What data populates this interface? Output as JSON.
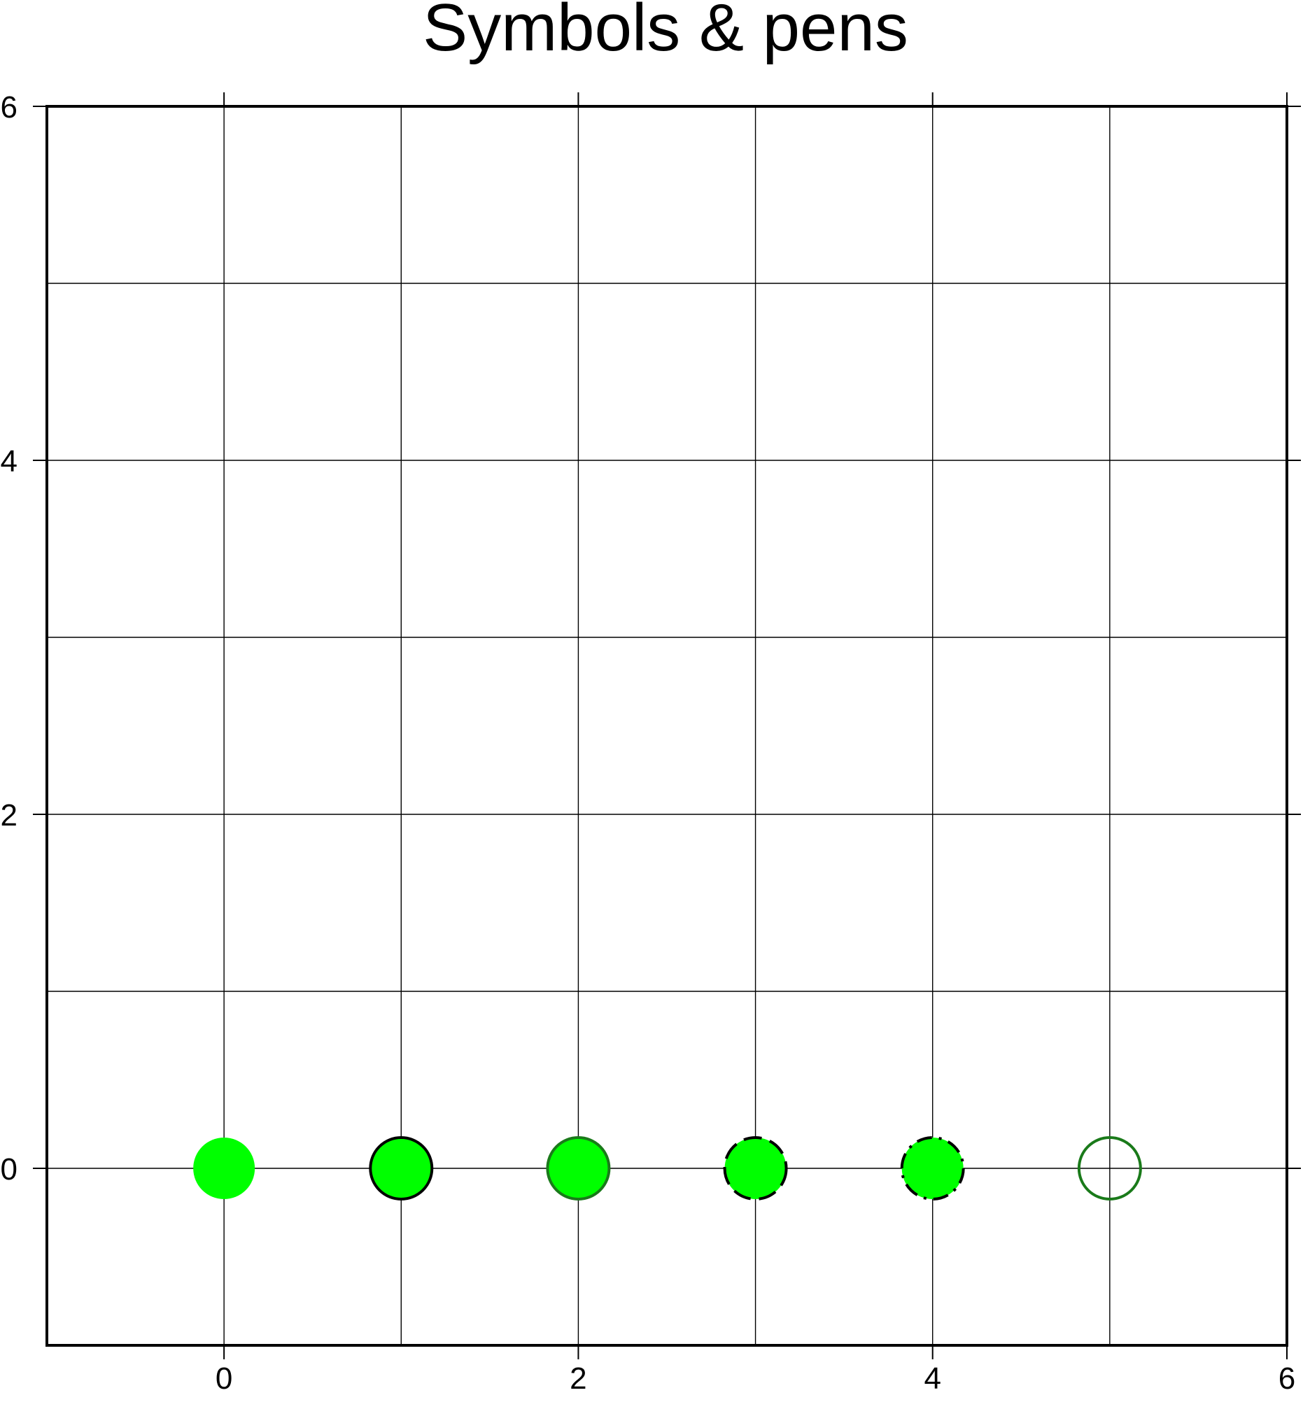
{
  "chart_data": {
    "type": "scatter",
    "title": "Symbols & pens",
    "xlabel": "",
    "ylabel": "",
    "xlim": [
      -1,
      6
    ],
    "ylim": [
      -1,
      6
    ],
    "grid": true,
    "x_ticks": [
      0,
      2,
      4,
      6
    ],
    "x_tick_labels": [
      "0",
      "2",
      "4",
      "6"
    ],
    "y_ticks": [
      0,
      2,
      4,
      6
    ],
    "y_tick_labels": [
      "0",
      "2",
      "4",
      "6"
    ],
    "x_gridlines": [
      0,
      1,
      2,
      3,
      4,
      5
    ],
    "y_gridlines": [
      0,
      1,
      2,
      3,
      4,
      5
    ],
    "points": [
      {
        "x": 0,
        "y": 0,
        "fill": "#00ff00",
        "pen": "none",
        "pen_color": null
      },
      {
        "x": 1,
        "y": 0,
        "fill": "#00ff00",
        "pen": "solid",
        "pen_color": "#000000"
      },
      {
        "x": 2,
        "y": 0,
        "fill": "#00ff00",
        "pen": "solid",
        "pen_color": "#1a7a1a"
      },
      {
        "x": 3,
        "y": 0,
        "fill": "#00ff00",
        "pen": "dashed",
        "pen_color": "#000000"
      },
      {
        "x": 4,
        "y": 0,
        "fill": "#00ff00",
        "pen": "dashdot",
        "pen_color": "#000000"
      },
      {
        "x": 5,
        "y": 0,
        "fill": "none",
        "pen": "solid",
        "pen_color": "#1a7a1a"
      }
    ]
  }
}
